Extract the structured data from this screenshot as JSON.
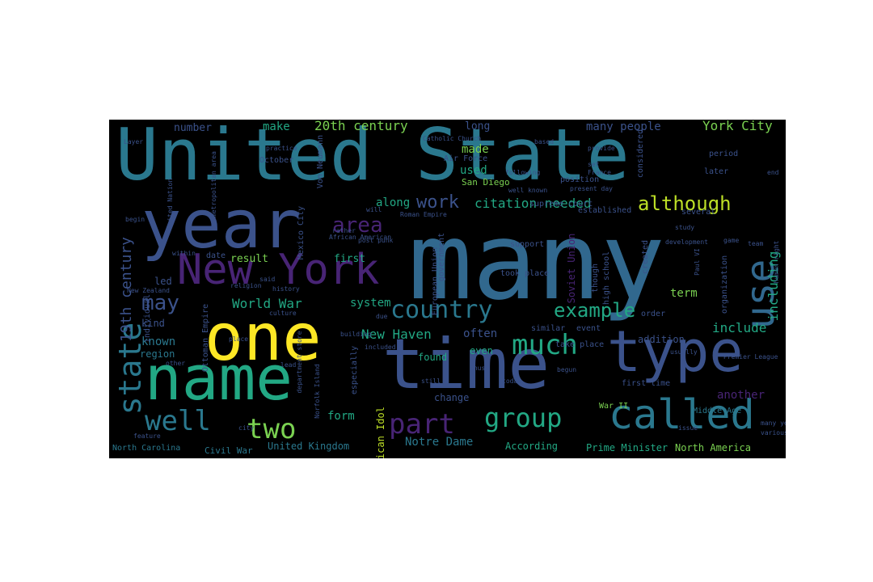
{
  "wordcloud": {
    "colors": {
      "background": "#000000",
      "teal": "#2a788e",
      "blue": "#31688e",
      "indigo": "#3b528b",
      "purple": "#482475",
      "green": "#22a884",
      "lightgreen": "#7ad151",
      "yellow": "#fde725",
      "lime": "#bddf26"
    },
    "words": [
      {
        "text": "United State"
      },
      {
        "text": "many"
      },
      {
        "text": "year"
      },
      {
        "text": "one"
      },
      {
        "text": "name"
      },
      {
        "text": "time"
      },
      {
        "text": "type"
      },
      {
        "text": "New York"
      },
      {
        "text": "use"
      },
      {
        "text": "called"
      },
      {
        "text": "well"
      },
      {
        "text": "two"
      },
      {
        "text": "state"
      },
      {
        "text": "country"
      },
      {
        "text": "much"
      },
      {
        "text": "example"
      },
      {
        "text": "group"
      },
      {
        "text": "part"
      },
      {
        "text": "although"
      },
      {
        "text": "may"
      },
      {
        "text": "work"
      },
      {
        "text": "area"
      },
      {
        "text": "including"
      },
      {
        "text": "include"
      },
      {
        "text": "20th century"
      },
      {
        "text": "19th century"
      },
      {
        "text": "York City"
      },
      {
        "text": "many people"
      },
      {
        "text": "make"
      },
      {
        "text": "number"
      },
      {
        "text": "long"
      },
      {
        "text": "made"
      },
      {
        "text": "used"
      },
      {
        "text": "San Diego"
      },
      {
        "text": "citation needed"
      },
      {
        "text": "along"
      },
      {
        "text": "World War"
      },
      {
        "text": "system"
      },
      {
        "text": "result"
      },
      {
        "text": "first"
      },
      {
        "text": "New Haven"
      },
      {
        "text": "often"
      },
      {
        "text": "known"
      },
      {
        "text": "region"
      },
      {
        "text": "kind"
      },
      {
        "text": "led"
      },
      {
        "text": "form"
      },
      {
        "text": "Notre Dame"
      },
      {
        "text": "United Kingdom"
      },
      {
        "text": "According"
      },
      {
        "text": "Prime Minister"
      },
      {
        "text": "North America"
      },
      {
        "text": "another"
      },
      {
        "text": "term"
      },
      {
        "text": "Soviet Union"
      },
      {
        "text": "American Idol"
      },
      {
        "text": "even"
      },
      {
        "text": "change"
      },
      {
        "text": "found"
      },
      {
        "text": "addition"
      },
      {
        "text": "War II"
      },
      {
        "text": "Middle Age"
      },
      {
        "text": "Civil War"
      },
      {
        "text": "North Carolina"
      },
      {
        "text": "Mexico City"
      },
      {
        "text": "Ottoman Empire"
      },
      {
        "text": "European Union"
      },
      {
        "text": "supreme court"
      },
      {
        "text": "high school"
      },
      {
        "text": "Air Force"
      },
      {
        "text": "Von Neumann"
      },
      {
        "text": "October"
      },
      {
        "text": "position"
      },
      {
        "text": "considered"
      },
      {
        "text": "period"
      },
      {
        "text": "later"
      },
      {
        "text": "established"
      },
      {
        "text": "several"
      },
      {
        "text": "support"
      },
      {
        "text": "take place"
      },
      {
        "text": "first time"
      },
      {
        "text": "took place"
      },
      {
        "text": "similar"
      },
      {
        "text": "event"
      },
      {
        "text": "organization"
      },
      {
        "text": "though"
      },
      {
        "text": "created"
      },
      {
        "text": "order"
      },
      {
        "text": "especially"
      },
      {
        "text": "government"
      },
      {
        "text": "individual"
      },
      {
        "text": "date"
      },
      {
        "text": "Catholic Church"
      },
      {
        "text": "practice"
      },
      {
        "text": "based"
      },
      {
        "text": "provide"
      },
      {
        "text": "end"
      },
      {
        "text": "following"
      },
      {
        "text": "set"
      },
      {
        "text": "France"
      },
      {
        "text": "will"
      },
      {
        "text": "said"
      },
      {
        "text": "still"
      },
      {
        "text": "thus"
      },
      {
        "text": "due"
      },
      {
        "text": "begin"
      },
      {
        "text": "today"
      },
      {
        "text": "usually"
      },
      {
        "text": "place"
      },
      {
        "text": "history"
      },
      {
        "text": "New Zealand"
      },
      {
        "text": "religion"
      },
      {
        "text": "culture"
      },
      {
        "text": "building"
      },
      {
        "text": "included"
      },
      {
        "text": "Norfolk Island"
      },
      {
        "text": "Premier League"
      },
      {
        "text": "United Nation"
      },
      {
        "text": "metropolitan area"
      },
      {
        "text": "Roman Empire"
      },
      {
        "text": "post punk"
      },
      {
        "text": "African American"
      },
      {
        "text": "department store"
      },
      {
        "text": "Paul VI"
      },
      {
        "text": "human right"
      },
      {
        "text": "many year"
      },
      {
        "text": "various"
      },
      {
        "text": "within"
      },
      {
        "text": "feature"
      },
      {
        "text": "begun"
      },
      {
        "text": "Layer"
      },
      {
        "text": "study"
      },
      {
        "text": "rather"
      },
      {
        "text": "well known"
      },
      {
        "text": "development"
      },
      {
        "text": "present day"
      },
      {
        "text": "issue"
      },
      {
        "text": "city"
      },
      {
        "text": "lead"
      },
      {
        "text": "other"
      },
      {
        "text": "team"
      },
      {
        "text": "game"
      }
    ]
  }
}
